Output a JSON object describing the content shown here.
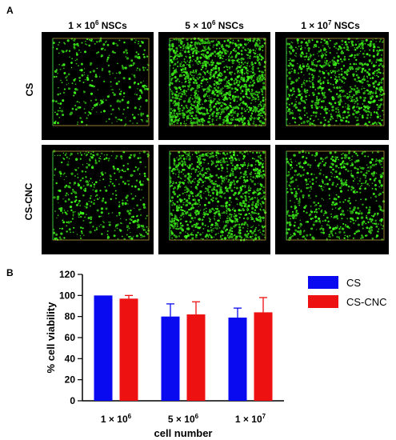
{
  "figure": {
    "panel_a_label": "A",
    "panel_b_label": "B",
    "column_headers": [
      {
        "prefix": "1 × 10",
        "exp": "6",
        "suffix": " NSCs"
      },
      {
        "prefix": "5 × 10",
        "exp": "6",
        "suffix": " NSCs"
      },
      {
        "prefix": "1 × 10",
        "exp": "7",
        "suffix": " NSCs"
      }
    ],
    "row_labels": [
      "CS",
      "CS-CNC"
    ],
    "micro_densities": [
      [
        350,
        1400,
        900
      ],
      [
        450,
        1100,
        650
      ]
    ]
  },
  "chart_data": {
    "type": "bar",
    "categories": [
      "1 × 10⁶",
      "5 × 10⁶",
      "1 × 10⁷"
    ],
    "category_tick_parts": [
      {
        "base": "1 × 10",
        "exp": "6"
      },
      {
        "base": "5 × 10",
        "exp": "6"
      },
      {
        "base": "1 × 10",
        "exp": "7"
      }
    ],
    "series": [
      {
        "name": "CS",
        "values": [
          100,
          80,
          79
        ],
        "errors": [
          0,
          12,
          9
        ],
        "color": "#0a0af0"
      },
      {
        "name": "CS-CNC",
        "values": [
          97,
          82,
          84
        ],
        "errors": [
          3,
          12,
          14
        ],
        "color": "#ee1111"
      }
    ],
    "xlabel": "cell number",
    "ylabel": "% cell viability",
    "ylim": [
      0,
      120
    ],
    "yticks": [
      0,
      20,
      40,
      60,
      80,
      100,
      120
    ],
    "legend_position": "right"
  }
}
